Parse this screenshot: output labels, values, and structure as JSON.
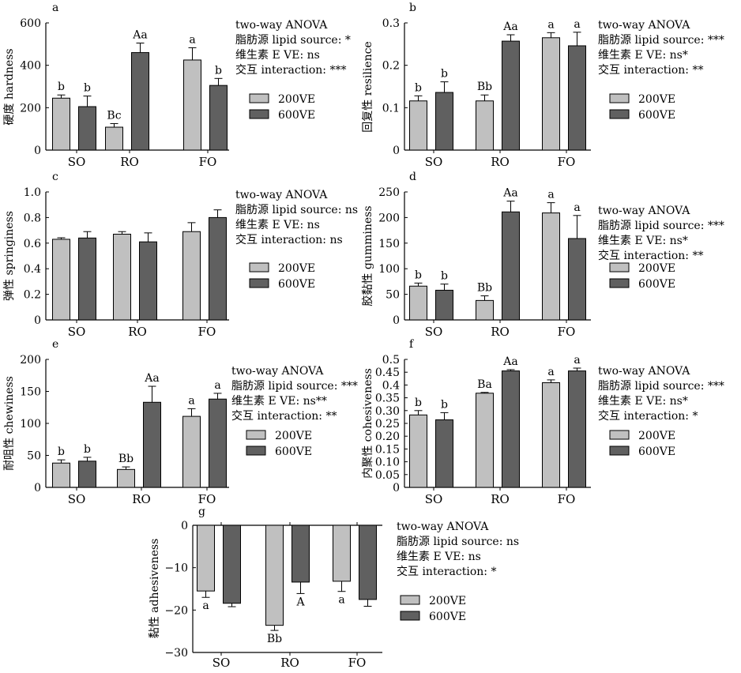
{
  "chart_data": [
    {
      "panel": "a",
      "type": "bar",
      "categories": [
        "SO",
        "RO",
        "FO"
      ],
      "ylabel": "硬度 hardness",
      "ylim": [
        0,
        600
      ],
      "yticks": [
        "0",
        "200",
        "400",
        "600"
      ],
      "series": [
        {
          "name": "200VE",
          "color": "#c0c0c0",
          "values": [
            245,
            108,
            425
          ],
          "errors": [
            15,
            17,
            58
          ],
          "labels": [
            "b",
            "Bc",
            "a"
          ]
        },
        {
          "name": "600VE",
          "color": "#606060",
          "values": [
            205,
            460,
            305
          ],
          "errors": [
            50,
            45,
            33
          ],
          "labels": [
            "b",
            "Aa",
            "b"
          ]
        }
      ],
      "anova": [
        "two-way ANOVA",
        "脂肪源  lipid source: *",
        "维生素 E VE: ns",
        "交互 interaction: ***"
      ]
    },
    {
      "panel": "b",
      "type": "bar",
      "categories": [
        "SO",
        "RO",
        "FO"
      ],
      "ylabel": "回复性 resilience",
      "ylim": [
        0,
        0.3
      ],
      "yticks": [
        "0",
        "0.1",
        "0.2",
        "0.3"
      ],
      "series": [
        {
          "name": "200VE",
          "color": "#c0c0c0",
          "values": [
            0.116,
            0.116,
            0.265
          ],
          "errors": [
            0.012,
            0.014,
            0.012
          ],
          "labels": [
            "b",
            "Bb",
            "a"
          ]
        },
        {
          "name": "600VE",
          "color": "#606060",
          "values": [
            0.136,
            0.257,
            0.246
          ],
          "errors": [
            0.025,
            0.015,
            0.032
          ],
          "labels": [
            "b",
            "Aa",
            "a"
          ]
        }
      ],
      "anova": [
        "two-way ANOVA",
        "脂肪源  lipid source: ***",
        "维生素 E VE: ns*",
        "交互 interaction: **"
      ]
    },
    {
      "panel": "c",
      "type": "bar",
      "categories": [
        "SO",
        "RO",
        "FO"
      ],
      "ylabel": "弹性 springiness",
      "ylim": [
        0,
        1.0
      ],
      "yticks": [
        "0",
        "0.2",
        "0.4",
        "0.6",
        "0.8",
        "1.0"
      ],
      "series": [
        {
          "name": "200VE",
          "color": "#c0c0c0",
          "values": [
            0.63,
            0.67,
            0.69
          ],
          "errors": [
            0.012,
            0.02,
            0.07
          ],
          "labels": [
            "",
            "",
            ""
          ]
        },
        {
          "name": "600VE",
          "color": "#606060",
          "values": [
            0.64,
            0.61,
            0.8
          ],
          "errors": [
            0.05,
            0.07,
            0.06
          ],
          "labels": [
            "",
            "",
            ""
          ]
        }
      ],
      "anova": [
        "two-way ANOVA",
        "脂肪源  lipid source: ns",
        "维生素 E VE: ns",
        "交互 interaction: ns"
      ]
    },
    {
      "panel": "d",
      "type": "bar",
      "categories": [
        "SO",
        "RO",
        "FO"
      ],
      "ylabel": "胶黏性 gumminess",
      "ylim": [
        0,
        250
      ],
      "yticks": [
        "0",
        "50",
        "100",
        "150",
        "200",
        "250"
      ],
      "series": [
        {
          "name": "200VE",
          "color": "#c0c0c0",
          "values": [
            66,
            38,
            209
          ],
          "errors": [
            6,
            9,
            20
          ],
          "labels": [
            "b",
            "Bb",
            "a"
          ]
        },
        {
          "name": "600VE",
          "color": "#606060",
          "values": [
            58,
            211,
            159
          ],
          "errors": [
            12,
            21,
            45
          ],
          "labels": [
            "b",
            "Aa",
            "a"
          ]
        }
      ],
      "anova": [
        "two-way ANOVA",
        "脂肪源  lipid source: ***",
        "维生素 E VE: ns*",
        "交互 interaction: **"
      ]
    },
    {
      "panel": "e",
      "type": "bar",
      "categories": [
        "SO",
        "RO",
        "FO"
      ],
      "ylabel": "耐咀性 chewiness",
      "ylim": [
        0,
        200
      ],
      "yticks": [
        "0",
        "50",
        "100",
        "150",
        "200"
      ],
      "series": [
        {
          "name": "200VE",
          "color": "#c0c0c0",
          "values": [
            38,
            28,
            111
          ],
          "errors": [
            5,
            4,
            12
          ],
          "labels": [
            "b",
            "Bb",
            "a"
          ]
        },
        {
          "name": "600VE",
          "color": "#606060",
          "values": [
            41,
            133,
            138
          ],
          "errors": [
            6,
            25,
            9
          ],
          "labels": [
            "b",
            "Aa",
            "a"
          ]
        }
      ],
      "anova": [
        "two-way ANOVA",
        "脂肪源  lipid source: ***",
        "维生素 E VE: ns**",
        "交互 interaction: **"
      ]
    },
    {
      "panel": "f",
      "type": "bar",
      "categories": [
        "SO",
        "RO",
        "FO"
      ],
      "ylabel": "内聚性 cohesiveness",
      "ylim": [
        0,
        0.5
      ],
      "yticks": [
        "0",
        "0.05",
        "0.10",
        "0.15",
        "0.20",
        "0.25",
        "0.30",
        "0.35",
        "0.4",
        "0.45",
        "0.5"
      ],
      "ytick_values": [
        0,
        0.05,
        0.1,
        0.15,
        0.2,
        0.25,
        0.3,
        0.35,
        0.4,
        0.45,
        0.5
      ],
      "series": [
        {
          "name": "200VE",
          "color": "#c0c0c0",
          "values": [
            0.283,
            0.368,
            0.409
          ],
          "errors": [
            0.017,
            0.003,
            0.011
          ],
          "labels": [
            "b",
            "Ba",
            "a"
          ]
        },
        {
          "name": "600VE",
          "color": "#606060",
          "values": [
            0.264,
            0.455,
            0.455
          ],
          "errors": [
            0.028,
            0.005,
            0.011
          ],
          "labels": [
            "b",
            "Aa",
            "a"
          ]
        }
      ],
      "anova": [
        "two-way ANOVA",
        "脂肪源  lipid source: ***",
        "维生素 E VE: ns*",
        "交互 interaction: *"
      ]
    },
    {
      "panel": "g",
      "type": "bar",
      "categories": [
        "SO",
        "RO",
        "FO"
      ],
      "ylabel": "黏性 adhesiveness",
      "ylim": [
        -30,
        0
      ],
      "yticks": [
        "0",
        "−10",
        "−20",
        "−30"
      ],
      "ytick_values": [
        0,
        -10,
        -20,
        -30
      ],
      "series": [
        {
          "name": "200VE",
          "color": "#c0c0c0",
          "values": [
            -15.5,
            -23.6,
            -13.2
          ],
          "errors": [
            1.5,
            1.2,
            2.4
          ],
          "labels": [
            "a",
            "Bb",
            "a"
          ]
        },
        {
          "name": "600VE",
          "color": "#606060",
          "values": [
            -18.4,
            -13.4,
            -17.5
          ],
          "errors": [
            0.8,
            2.7,
            1.6
          ],
          "labels": [
            "",
            "A",
            ""
          ]
        }
      ],
      "anova": [
        "two-way ANOVA",
        "脂肪源  lipid source: ns",
        "维生素 E VE: ns",
        "交互 interaction: *"
      ]
    }
  ]
}
